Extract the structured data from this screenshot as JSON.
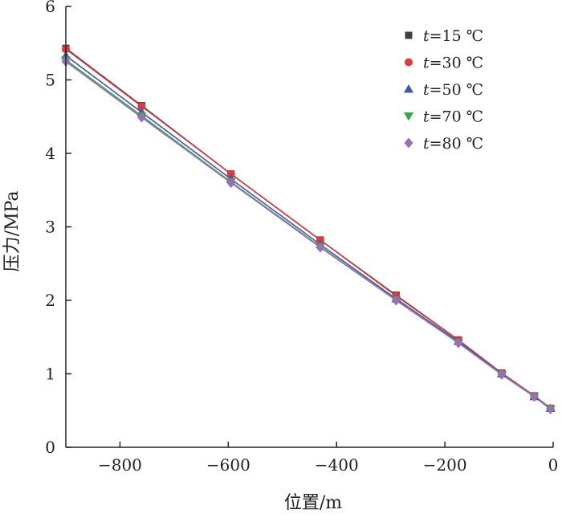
{
  "chart_data": {
    "type": "line",
    "xlabel": "位置/m",
    "ylabel": "压力/MPa",
    "xlim": [
      -900,
      0
    ],
    "ylim": [
      0,
      6
    ],
    "xticks": [
      -800,
      -600,
      -400,
      -200,
      0
    ],
    "yticks": [
      0,
      1,
      2,
      3,
      4,
      5,
      6
    ],
    "xtick_labels": [
      "−800",
      "−600",
      "−400",
      "−200",
      "0"
    ],
    "ytick_labels": [
      "0",
      "1",
      "2",
      "3",
      "4",
      "5",
      "6"
    ],
    "grid": false,
    "legend_position": "top-right",
    "x": [
      -900,
      -760,
      -595,
      -430,
      -290,
      -175,
      -95,
      -35,
      -5
    ],
    "series": [
      {
        "name": "t=15 ℃",
        "name_var": "t",
        "name_rest": "=15 ℃",
        "marker": "square",
        "color": "#404040",
        "values": [
          5.43,
          4.65,
          3.72,
          2.82,
          2.07,
          1.46,
          1.01,
          0.7,
          0.53
        ]
      },
      {
        "name": "t=30 ℃",
        "name_var": "t",
        "name_rest": "=30 ℃",
        "marker": "circle",
        "color": "#e0393e",
        "values": [
          5.42,
          4.64,
          3.72,
          2.82,
          2.06,
          1.46,
          1.01,
          0.7,
          0.53
        ]
      },
      {
        "name": "t=50 ℃",
        "name_var": "t",
        "name_rest": "=50 ℃",
        "marker": "triangle-up",
        "color": "#3c5ba8",
        "values": [
          5.33,
          4.56,
          3.65,
          2.76,
          2.02,
          1.44,
          1.0,
          0.69,
          0.53
        ]
      },
      {
        "name": "t=70 ℃",
        "name_var": "t",
        "name_rest": "=70 ℃",
        "marker": "triangle-down",
        "color": "#2faa4a",
        "values": [
          5.27,
          4.51,
          3.61,
          2.73,
          2.0,
          1.42,
          0.99,
          0.69,
          0.52
        ]
      },
      {
        "name": "t=80 ℃",
        "name_var": "t",
        "name_rest": "=80 ℃",
        "marker": "diamond",
        "color": "#9a6fb3",
        "values": [
          5.25,
          4.49,
          3.6,
          2.72,
          2.0,
          1.42,
          0.99,
          0.69,
          0.52
        ]
      }
    ]
  }
}
